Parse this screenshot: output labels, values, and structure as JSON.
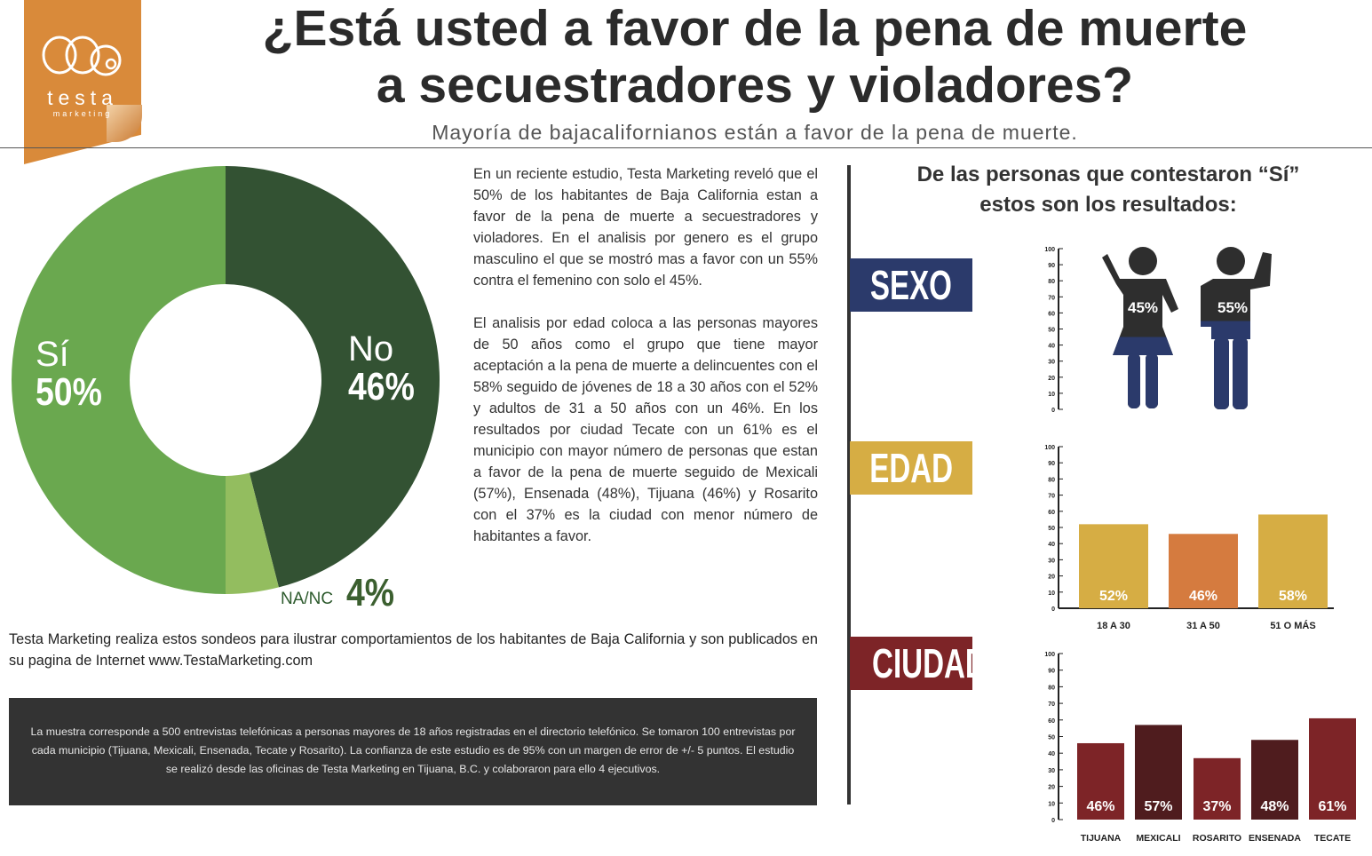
{
  "brand": {
    "wordmark": "testa",
    "tagline": "marketing"
  },
  "title": "¿Está usted a favor de la pena de muerte\na secuestradores y violadores?",
  "subtitle": "Mayoría de bajacalifornianos están a favor de la pena de muerte.",
  "body_paragraphs": [
    "En un reciente estudio, Testa Marketing reveló que el 50% de los habitantes de Baja California estan a favor de la pena de muerte a secuestradores y violadores. En el analisis por genero es el grupo masculino el que se mostró mas a favor con un 55% contra el femenino con solo el 45%.",
    "El analisis por edad coloca a las personas mayores de 50 años como el grupo que tiene mayor aceptación a la pena de muerte a delincuentes con el 58% seguido de jóvenes de 18 a 30 años con el 52% y adultos de 31 a 50 años con un 46%. En los resultados por ciudad Tecate con un 61% es el municipio con mayor número de personas que estan a favor de la pena de muerte seguido de Mexicali (57%), Ensenada (48%), Tijuana (46%) y Rosarito con el 37% es la ciudad con menor número de habitantes a favor."
  ],
  "footer_note": "Testa Marketing realiza estos sondeos para ilustrar comportamientos de los habitantes de Baja California y son publicados en su pagina de Internet www.TestaMarketing.com",
  "methodology": "La muestra corresponde a 500 entrevistas telefónicas a personas mayores de 18 años registradas en el directorio telefónico. Se tomaron 100 entrevistas por cada municipio (Tijuana, Mexicali, Ensenada, Tecate y Rosarito). La confianza de este estudio es de 95% con un margen de error de +/- 5 puntos. El estudio se realizó desde las oficinas de Testa Marketing en Tijuana, B.C. y colaboraron para ello 4 ejecutivos.",
  "right_heading": "De las personas que contestaron “Sí”\nestos son los resultados:",
  "category_tags": {
    "sexo": "SEXO",
    "edad": "EDAD",
    "ciudad": "CIUDAD"
  },
  "colors": {
    "si": "#6aa84f",
    "no": "#335233",
    "nanc": "#93bd5f",
    "navy": "#2b3a6b",
    "gold": "#d6ad44",
    "orange": "#d57b3f",
    "maroon": "#7d2427",
    "maroon_dark": "#4f1c1e",
    "figure": "#2e2e2e"
  },
  "chart_data": [
    {
      "type": "pie",
      "categories": [
        "No",
        "NA/NC",
        "Sí"
      ],
      "values": [
        46,
        4,
        50
      ],
      "labels": [
        "No",
        "NA/NC",
        "Sí"
      ],
      "value_labels": [
        "46%",
        "4%",
        "50%"
      ],
      "title": ""
    },
    {
      "type": "bar",
      "categories": [
        "Mujer",
        "Hombre"
      ],
      "values": [
        45,
        55
      ],
      "value_labels": [
        "45%",
        "55%"
      ],
      "ylim": [
        0,
        100
      ],
      "yticks": [
        0,
        10,
        20,
        30,
        40,
        50,
        60,
        70,
        80,
        90,
        100
      ],
      "icons": [
        "woman-figure-icon",
        "man-figure-icon"
      ]
    },
    {
      "type": "bar",
      "categories": [
        "18 A 30",
        "31 A 50",
        "51 O MÁS"
      ],
      "values": [
        52,
        46,
        58
      ],
      "value_labels": [
        "52%",
        "46%",
        "58%"
      ],
      "ylim": [
        0,
        100
      ],
      "yticks": [
        0,
        10,
        20,
        30,
        40,
        50,
        60,
        70,
        80,
        90,
        100
      ]
    },
    {
      "type": "bar",
      "categories": [
        "TIJUANA",
        "MEXICALI",
        "ROSARITO",
        "ENSENADA",
        "TECATE"
      ],
      "values": [
        46,
        57,
        37,
        48,
        61
      ],
      "value_labels": [
        "46%",
        "57%",
        "37%",
        "48%",
        "61%"
      ],
      "ylim": [
        0,
        100
      ],
      "yticks": [
        0,
        10,
        20,
        30,
        40,
        50,
        60,
        70,
        80,
        90,
        100
      ]
    }
  ]
}
